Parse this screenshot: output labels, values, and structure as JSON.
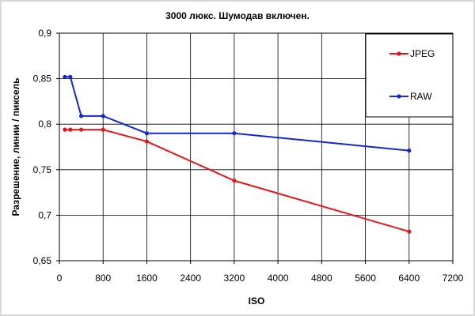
{
  "chart_data": {
    "type": "line",
    "title": "3000 люкс. Шумодав включен.",
    "xlabel": "ISO",
    "ylabel": "Разрешение, линии / пиксель",
    "xlim": [
      0,
      7200
    ],
    "ylim": [
      0.65,
      0.9
    ],
    "x_ticks": [
      0,
      800,
      1600,
      2400,
      3200,
      4000,
      4800,
      5600,
      6400,
      7200
    ],
    "x_tick_labels": [
      "0",
      "800",
      "1600",
      "2400",
      "3200",
      "4000",
      "4800",
      "5600",
      "6400",
      "7200"
    ],
    "y_ticks": [
      0.65,
      0.7,
      0.75,
      0.8,
      0.85,
      0.9
    ],
    "y_tick_labels": [
      "0,65",
      "0,7",
      "0,75",
      "0,8",
      "0,85",
      "0,9"
    ],
    "grid": "horizontal and vertical",
    "legend_position": "top-right",
    "series": [
      {
        "name": "JPEG",
        "color": "#e8141b",
        "x": [
          100,
          200,
          400,
          800,
          1600,
          3200,
          6400
        ],
        "y": [
          0.794,
          0.794,
          0.794,
          0.794,
          0.781,
          0.738,
          0.682
        ]
      },
      {
        "name": "RAW",
        "color": "#1428d0",
        "x": [
          100,
          200,
          400,
          800,
          1600,
          3200,
          6400
        ],
        "y": [
          0.852,
          0.852,
          0.809,
          0.809,
          0.79,
          0.79,
          0.771
        ]
      }
    ]
  }
}
